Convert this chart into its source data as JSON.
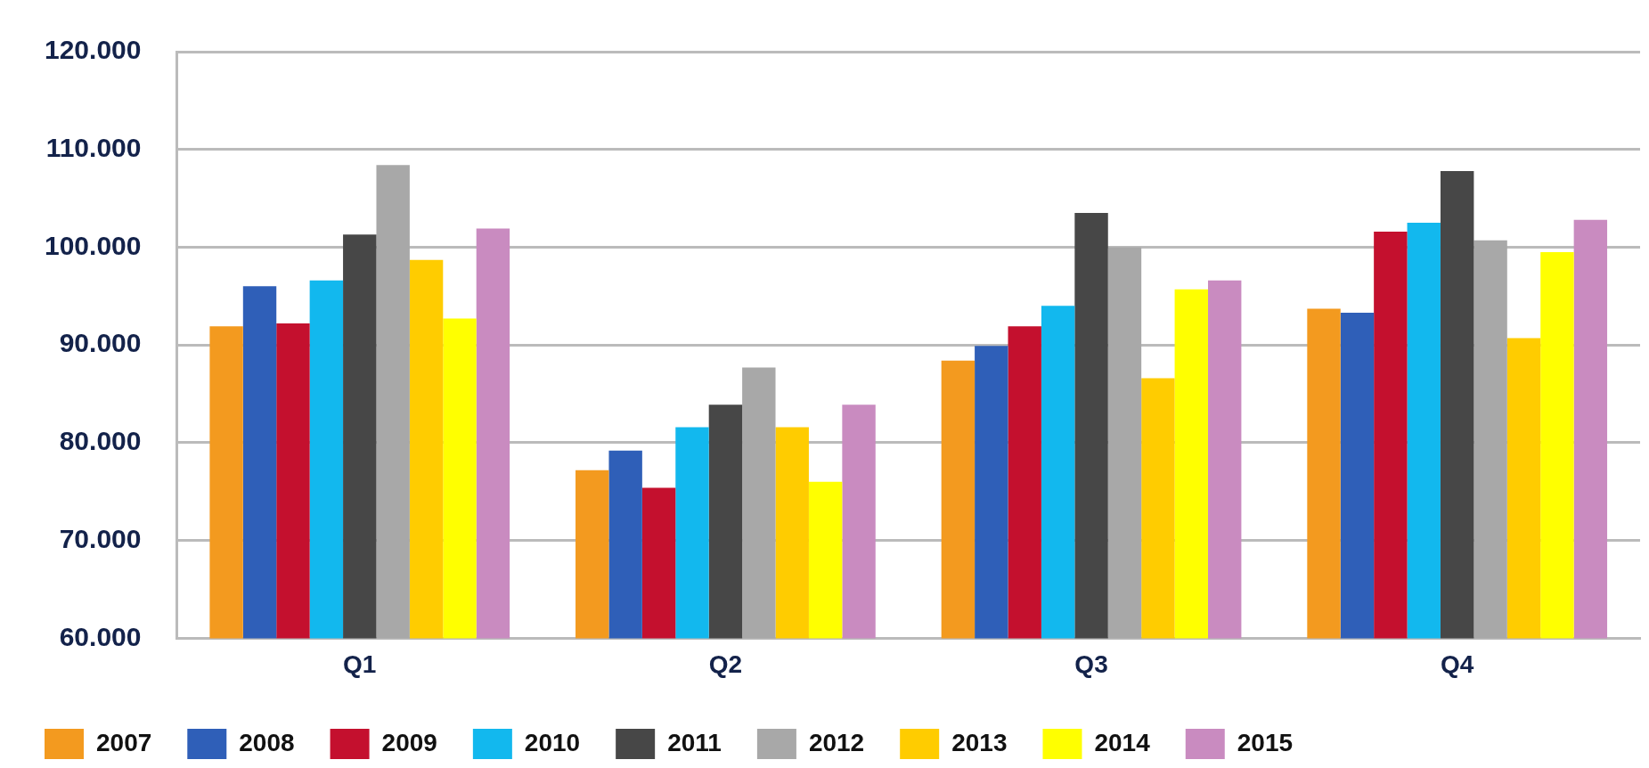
{
  "chart_data": {
    "type": "bar",
    "categories": [
      "Q1",
      "Q2",
      "Q3",
      "Q4"
    ],
    "series": [
      {
        "name": "2007",
        "color": "#f39a1f",
        "values": [
          91.9,
          77.2,
          88.4,
          93.7
        ]
      },
      {
        "name": "2008",
        "color": "#2f5fb8",
        "values": [
          96.0,
          79.2,
          89.9,
          93.3
        ]
      },
      {
        "name": "2009",
        "color": "#c4102e",
        "values": [
          92.2,
          75.4,
          91.9,
          101.6
        ]
      },
      {
        "name": "2010",
        "color": "#12b8ee",
        "values": [
          96.6,
          81.6,
          94.0,
          102.5
        ]
      },
      {
        "name": "2011",
        "color": "#474747",
        "values": [
          101.3,
          83.9,
          103.5,
          107.8
        ]
      },
      {
        "name": "2012",
        "color": "#a8a8a8",
        "values": [
          108.4,
          87.7,
          100.0,
          100.7
        ]
      },
      {
        "name": "2013",
        "color": "#ffcc00",
        "values": [
          98.7,
          81.6,
          86.6,
          90.7
        ]
      },
      {
        "name": "2014",
        "color": "#ffff00",
        "values": [
          92.7,
          76.0,
          95.7,
          99.5
        ]
      },
      {
        "name": "2015",
        "color": "#c98bc0",
        "values": [
          101.9,
          83.9,
          96.6,
          102.8
        ]
      }
    ],
    "ylim": [
      60,
      120
    ],
    "yticks": [
      {
        "value": 60,
        "label": "60.000"
      },
      {
        "value": 70,
        "label": "70.000"
      },
      {
        "value": 80,
        "label": "80.000"
      },
      {
        "value": 90,
        "label": "90.000"
      },
      {
        "value": 100,
        "label": "100.000"
      },
      {
        "value": 110,
        "label": "110.000"
      },
      {
        "value": 120,
        "label": "120.000"
      }
    ],
    "grid": "y",
    "legend": "bottom left"
  }
}
